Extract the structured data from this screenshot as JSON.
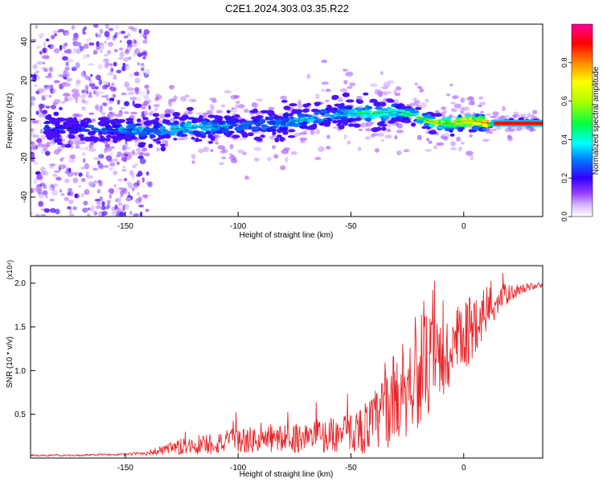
{
  "title": "C2E1.2024.303.03.35.R22",
  "colorbar": {
    "label": "Normalized spectral amplitude",
    "ticks": [
      "0.0",
      "0.2",
      "0.4",
      "0.6",
      "0.8"
    ],
    "tick_values": [
      0.0,
      0.2,
      0.4,
      0.6,
      0.8
    ],
    "range": [
      0,
      1
    ],
    "colors": [
      "#ffffff",
      "#c08aff",
      "#7b00ff",
      "#0000ff",
      "#00ffff",
      "#00ff44",
      "#a8ff00",
      "#ffff00",
      "#ff8800",
      "#ff0000",
      "#ff0099"
    ]
  },
  "colors": {
    "snr_line": "#e8262a",
    "axis": "#000000"
  },
  "chart_data": [
    {
      "type": "heatmap",
      "title": "C2E1.2024.303.03.35.R22",
      "xlabel": "Height of straight line (km)",
      "ylabel": "Frequency (Hz)",
      "xlim": [
        -192,
        35
      ],
      "ylim": [
        -50,
        49
      ],
      "xticks": [
        -150,
        -100,
        -50,
        0
      ],
      "xtick_labels": [
        "-150",
        "-100",
        "-50",
        "0"
      ],
      "yticks": [
        -40,
        -20,
        0,
        20,
        40
      ],
      "ytick_labels": [
        "-40",
        "-20",
        "0",
        "20",
        "40"
      ],
      "ridge": {
        "description": "spectral ridge center frequency vs height",
        "x": [
          -185,
          -170,
          -160,
          -150,
          -140,
          -130,
          -120,
          -110,
          -100,
          -90,
          -80,
          -70,
          -60,
          -50,
          -40,
          -30,
          -25,
          -20,
          -15,
          -10,
          -5,
          0,
          5,
          10,
          15,
          20,
          25,
          30,
          35
        ],
        "y": [
          -4,
          -5,
          -5,
          -5,
          -6,
          -5,
          -4,
          -4,
          -3,
          -3,
          -2,
          0,
          2,
          3,
          3,
          4,
          3,
          1,
          -1,
          -2,
          -2,
          -1,
          -1,
          -2,
          -2,
          -2,
          -2,
          -2,
          -2
        ],
        "amplitude": [
          0.3,
          0.3,
          0.35,
          0.35,
          0.4,
          0.4,
          0.45,
          0.4,
          0.35,
          0.35,
          0.4,
          0.4,
          0.4,
          0.45,
          0.5,
          0.5,
          0.55,
          0.6,
          0.65,
          0.7,
          0.75,
          0.8,
          0.85,
          0.9,
          0.92,
          0.95,
          0.95,
          0.95,
          0.95
        ]
      },
      "noise_region": {
        "x_range": [
          -192,
          -145
        ],
        "y_range": [
          -50,
          49
        ],
        "amplitude": 0.15
      }
    },
    {
      "type": "line",
      "xlabel": "Height of straight line (km)",
      "ylabel": "SNR (10 * v/v)",
      "y_multiplier": "(x10⁴)",
      "xlim": [
        -192,
        35
      ],
      "ylim": [
        0,
        2.2
      ],
      "xticks": [
        -150,
        -100,
        -50,
        0
      ],
      "xtick_labels": [
        "-150",
        "-100",
        "-50",
        "0"
      ],
      "yticks": [
        0.5,
        1.0,
        1.5,
        2.0
      ],
      "ytick_labels": [
        "0.5",
        "1.0",
        "1.5",
        "2.0"
      ],
      "series": [
        {
          "name": "SNR",
          "x": [
            -192,
            -180,
            -170,
            -160,
            -150,
            -140,
            -135,
            -130,
            -125,
            -120,
            -115,
            -110,
            -105,
            -100,
            -95,
            -90,
            -85,
            -80,
            -75,
            -70,
            -65,
            -60,
            -55,
            -50,
            -45,
            -40,
            -35,
            -30,
            -25,
            -20,
            -15,
            -10,
            -5,
            0,
            5,
            10,
            15,
            20,
            25,
            30,
            35
          ],
          "y": [
            0.03,
            0.03,
            0.03,
            0.04,
            0.04,
            0.06,
            0.08,
            0.1,
            0.12,
            0.15,
            0.16,
            0.17,
            0.18,
            0.2,
            0.2,
            0.2,
            0.22,
            0.22,
            0.23,
            0.24,
            0.25,
            0.26,
            0.27,
            0.3,
            0.33,
            0.4,
            0.55,
            0.7,
            0.85,
            1.0,
            1.05,
            1.1,
            1.2,
            1.35,
            1.55,
            1.7,
            1.8,
            1.88,
            1.93,
            1.96,
            1.98
          ],
          "noise": [
            0.01,
            0.01,
            0.01,
            0.01,
            0.01,
            0.03,
            0.05,
            0.08,
            0.1,
            0.12,
            0.13,
            0.13,
            0.14,
            0.15,
            0.15,
            0.15,
            0.16,
            0.16,
            0.17,
            0.17,
            0.18,
            0.2,
            0.2,
            0.22,
            0.28,
            0.35,
            0.45,
            0.55,
            0.6,
            0.65,
            0.6,
            0.55,
            0.5,
            0.45,
            0.35,
            0.3,
            0.2,
            0.1,
            0.06,
            0.04,
            0.03
          ]
        }
      ]
    }
  ]
}
